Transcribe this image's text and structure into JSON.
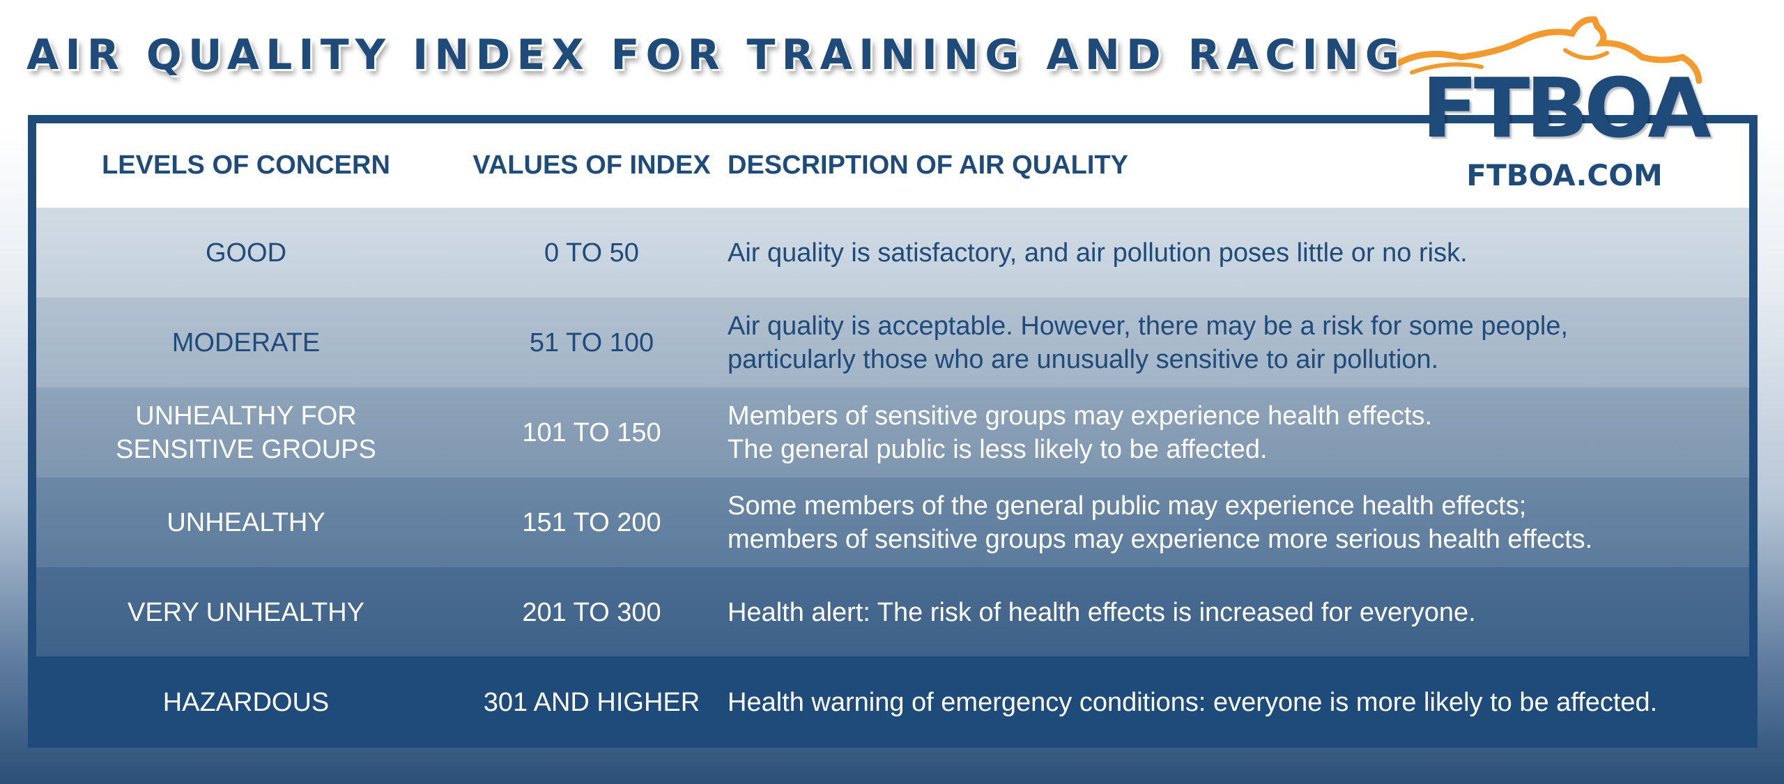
{
  "title": "AIR QUALITY INDEX FOR TRAINING AND RACING",
  "logo": {
    "text": "FTBOA",
    "url": "FTBOA.COM"
  },
  "headers": {
    "level": "LEVELS OF CONCERN",
    "value": "VALUES OF INDEX",
    "description": "DESCRIPTION OF AIR QUALITY"
  },
  "rows": [
    {
      "level": "GOOD",
      "value": "0 TO 50",
      "description": "Air quality is satisfactory, and air pollution poses little or no risk."
    },
    {
      "level": "MODERATE",
      "value": "51 TO 100",
      "description": "Air quality is acceptable. However, there may be a risk for some people,\nparticularly those who are unusually sensitive to air pollution."
    },
    {
      "level": "UNHEALTHY FOR\nSENSITIVE GROUPS",
      "value": "101 TO 150",
      "description": "Members of sensitive groups may experience health effects.\nThe general public is less likely to be affected."
    },
    {
      "level": "UNHEALTHY",
      "value": "151 TO 200",
      "description": "Some members of the general public may experience health effects;\nmembers of sensitive groups may experience more serious health effects."
    },
    {
      "level": "VERY UNHEALTHY",
      "value": "201 TO 300",
      "description": "Health alert: The risk of health effects is increased for everyone."
    },
    {
      "level": "HAZARDOUS",
      "value": "301 AND HIGHER",
      "description": "Health warning of emergency conditions: everyone is more likely to be affected."
    }
  ],
  "colors": {
    "navy": "#1f4b7a",
    "orange": "#f29a2e",
    "white": "#ffffff"
  }
}
